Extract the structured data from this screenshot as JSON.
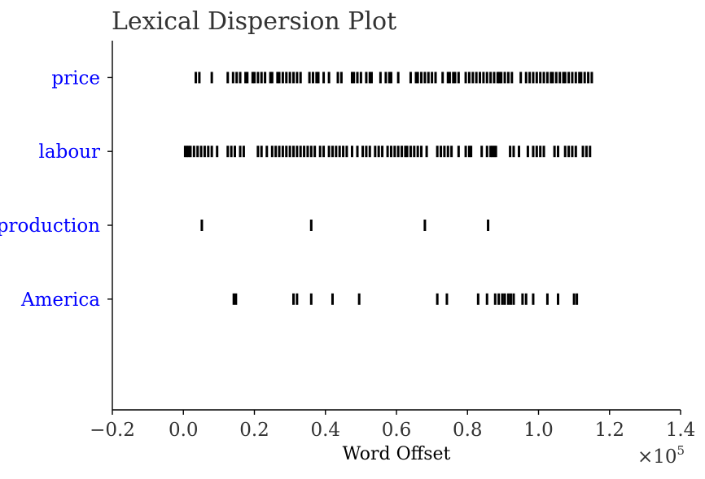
{
  "chart_data": {
    "type": "scatter",
    "title": "Lexical Dispersion Plot",
    "xlabel": "Word Offset",
    "ylabel": "",
    "x_multiplier_label": "×10",
    "x_multiplier_exponent": "5",
    "xlim": [
      -0.2,
      1.4
    ],
    "x_scale": 100000,
    "x_ticks": [
      {
        "value": -0.2,
        "label": "−0.2"
      },
      {
        "value": 0.0,
        "label": "0.0"
      },
      {
        "value": 0.2,
        "label": "0.2"
      },
      {
        "value": 0.4,
        "label": "0.4"
      },
      {
        "value": 0.6,
        "label": "0.6"
      },
      {
        "value": 0.8,
        "label": "0.8"
      },
      {
        "value": 1.0,
        "label": "1.0"
      },
      {
        "value": 1.2,
        "label": "1.2"
      },
      {
        "value": 1.4,
        "label": "1.4"
      }
    ],
    "grid": false,
    "marker": "|",
    "marker_color": "#000000",
    "label_color": "#0000ff",
    "categories": [
      "America",
      "production",
      "labour",
      "price"
    ],
    "series": [
      {
        "name": "price",
        "x": [
          3500,
          4500,
          8000,
          12500,
          14000,
          15000,
          16000,
          17500,
          18000,
          19500,
          20000,
          21000,
          22000,
          23000,
          24500,
          25000,
          26500,
          27000,
          28000,
          29000,
          30000,
          31000,
          32000,
          33000,
          35500,
          36500,
          37500,
          38000,
          39500,
          41000,
          43500,
          44500,
          47500,
          48000,
          49000,
          50000,
          51500,
          52500,
          53000,
          55500,
          57000,
          58000,
          58500,
          60500,
          64000,
          65500,
          66000,
          67000,
          68000,
          69000,
          70000,
          71000,
          73000,
          74500,
          75000,
          76000,
          76500,
          77500,
          79500,
          80500,
          81500,
          82500,
          83500,
          84500,
          85500,
          86500,
          87500,
          88500,
          89000,
          89500,
          90500,
          91500,
          92500,
          95000,
          96500,
          97500,
          98500,
          99500,
          100500,
          101500,
          102500,
          103500,
          104000,
          105000,
          106000,
          107000,
          107500,
          108500,
          109500,
          110500,
          111500,
          112000,
          113000,
          114000,
          115000
        ]
      },
      {
        "name": "labour",
        "x": [
          500,
          1000,
          1500,
          2000,
          3000,
          4000,
          5000,
          6000,
          7000,
          8000,
          9500,
          12500,
          13500,
          14500,
          16000,
          17000,
          21000,
          22000,
          23500,
          25000,
          26000,
          27000,
          28000,
          29000,
          30000,
          31000,
          32000,
          33000,
          34000,
          35000,
          36000,
          37000,
          38500,
          39500,
          41000,
          42000,
          43000,
          44000,
          45000,
          46000,
          47500,
          49000,
          50500,
          51500,
          52500,
          54000,
          55000,
          56000,
          57500,
          58500,
          59500,
          60500,
          61500,
          62500,
          63000,
          64000,
          65000,
          66000,
          67000,
          68500,
          71500,
          72500,
          73500,
          74500,
          75500,
          77500,
          79500,
          80500,
          81000,
          84000,
          85500,
          86500,
          87000,
          87500,
          88000,
          92000,
          93000,
          94500,
          97000,
          98500,
          99500,
          100500,
          101500,
          104500,
          105500,
          107500,
          108500,
          109500,
          110500,
          112500,
          113500,
          114500
        ]
      },
      {
        "name": "production",
        "x": [
          5200,
          36000,
          68000,
          85800
        ]
      },
      {
        "name": "America",
        "x": [
          14200,
          14800,
          31000,
          32000,
          36000,
          42000,
          49500,
          71500,
          74200,
          83000,
          85500,
          87800,
          88800,
          89800,
          90500,
          91500,
          92200,
          93000,
          95500,
          96500,
          98500,
          102500,
          105500,
          110000,
          110800
        ]
      }
    ]
  }
}
